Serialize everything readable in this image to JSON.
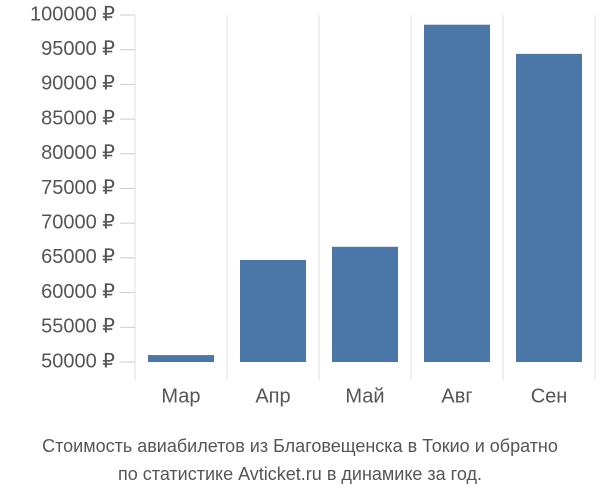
{
  "chart_data": {
    "type": "bar",
    "caption": [
      "Стоимость авиабилетов из Благовещенска в Токио и обратно",
      "по статистике Avticket.ru в динамике за год."
    ],
    "categories": [
      "Мар",
      "Апр",
      "Май",
      "Авг",
      "Сен"
    ],
    "values": [
      51000,
      64700,
      66600,
      98600,
      94400
    ],
    "color": "#4a76a8",
    "ylim": [
      50000,
      100000
    ],
    "yticks": [
      {
        "value": 50000,
        "label": "50000 ₽"
      },
      {
        "value": 55000,
        "label": "55000 ₽"
      },
      {
        "value": 60000,
        "label": "60000 ₽"
      },
      {
        "value": 65000,
        "label": "65000 ₽"
      },
      {
        "value": 70000,
        "label": "70000 ₽"
      },
      {
        "value": 75000,
        "label": "75000 ₽"
      },
      {
        "value": 80000,
        "label": "80000 ₽"
      },
      {
        "value": 85000,
        "label": "85000 ₽"
      },
      {
        "value": 90000,
        "label": "90000 ₽"
      },
      {
        "value": 95000,
        "label": "95000 ₽"
      },
      {
        "value": 100000,
        "label": "100000 ₽"
      }
    ],
    "grid": true
  }
}
